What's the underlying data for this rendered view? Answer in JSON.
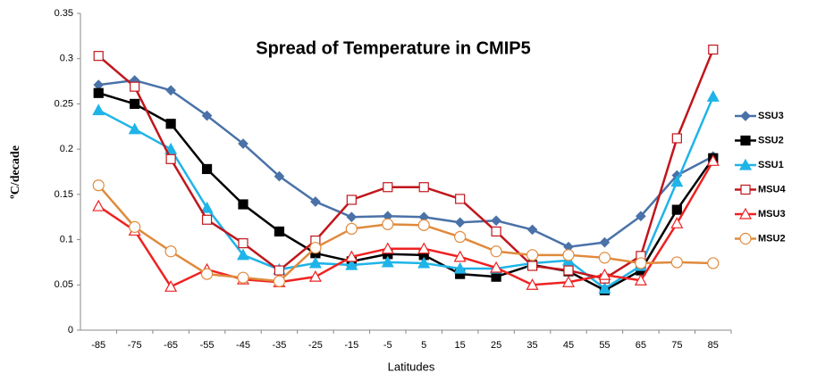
{
  "chart_data": {
    "type": "line",
    "title": "Spread  of Temperature in CMIP5",
    "x_label": "Latitudes",
    "y_label": "ºC/decade",
    "categories": [
      -85,
      -75,
      -65,
      -55,
      -45,
      -35,
      -25,
      -15,
      -5,
      5,
      15,
      25,
      35,
      45,
      55,
      65,
      75,
      85
    ],
    "ylim": [
      0,
      0.35
    ],
    "yticks": [
      0,
      0.05,
      0.1,
      0.15,
      0.2,
      0.25,
      0.3,
      0.35
    ],
    "grid": false,
    "legend": "right",
    "series": [
      {
        "name": "SSU3",
        "color": "#4a72a8",
        "marker": "diamond",
        "values": [
          0.271,
          0.276,
          0.265,
          0.237,
          0.206,
          0.17,
          0.142,
          0.125,
          0.126,
          0.125,
          0.119,
          0.121,
          0.111,
          0.092,
          0.097,
          0.126,
          0.171,
          0.192
        ]
      },
      {
        "name": "SSU2",
        "color": "#000000",
        "marker": "square",
        "values": [
          0.262,
          0.25,
          0.228,
          0.178,
          0.139,
          0.109,
          0.085,
          0.076,
          0.084,
          0.083,
          0.062,
          0.059,
          0.072,
          0.065,
          0.044,
          0.066,
          0.133,
          0.19
        ]
      },
      {
        "name": "SSU1",
        "color": "#1fb4e8",
        "marker": "triangle",
        "values": [
          0.243,
          0.222,
          0.2,
          0.135,
          0.083,
          0.067,
          0.074,
          0.072,
          0.075,
          0.074,
          0.068,
          0.068,
          0.074,
          0.077,
          0.046,
          0.071,
          0.164,
          0.258
        ]
      },
      {
        "name": "MSU4",
        "color": "#c0161c",
        "marker": "square-open",
        "values": [
          0.303,
          0.269,
          0.189,
          0.122,
          0.096,
          0.066,
          0.099,
          0.144,
          0.158,
          0.158,
          0.145,
          0.109,
          0.071,
          0.066,
          0.057,
          0.082,
          0.212,
          0.31
        ]
      },
      {
        "name": "MSU3",
        "color": "#ee2222",
        "marker": "triangle-open",
        "values": [
          0.137,
          0.11,
          0.048,
          0.067,
          0.056,
          0.053,
          0.059,
          0.081,
          0.09,
          0.09,
          0.081,
          0.069,
          0.05,
          0.053,
          0.061,
          0.055,
          0.118,
          0.187
        ]
      },
      {
        "name": "MSU2",
        "color": "#e08a3c",
        "marker": "circle-open",
        "values": [
          0.16,
          0.114,
          0.087,
          0.062,
          0.058,
          0.054,
          0.091,
          0.112,
          0.117,
          0.116,
          0.103,
          0.087,
          0.083,
          0.083,
          0.08,
          0.074,
          0.075,
          0.074
        ]
      }
    ]
  }
}
